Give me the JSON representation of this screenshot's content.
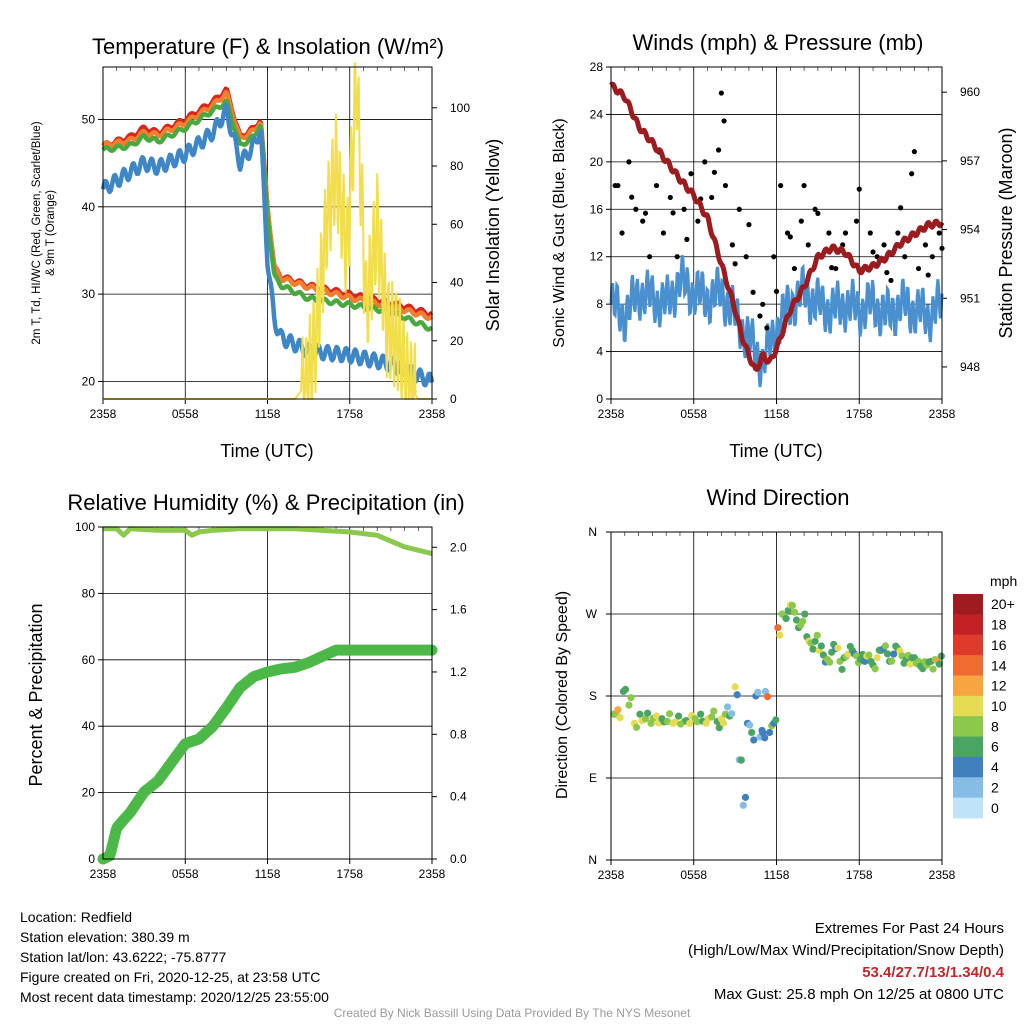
{
  "x_ticks": [
    "2358",
    "0558",
    "1158",
    "1758",
    "2358"
  ],
  "panels": {
    "temperature": {
      "title": "Temperature (F) & Insolation (W/m²)",
      "xlabel": "Time (UTC)",
      "ylabel_line1": "2m T, Td, HI/WC (Red, Green, Scarlet/Blue)",
      "ylabel_line2": "& 9m T (Orange)",
      "y2label": "Solar Insolation (Yellow)"
    },
    "winds": {
      "title": "Winds (mph) & Pressure (mb)",
      "xlabel": "Time (UTC)",
      "ylabel": "Sonic Wind & Gust (Blue, Black)",
      "y2label": "Station Pressure (Maroon)"
    },
    "humidity": {
      "title": "Relative Humidity (%) & Precipitation (in)",
      "ylabel": "Percent & Precipitation"
    },
    "direction": {
      "title": "Wind Direction",
      "ylabel": "Direction (Colored By Speed)",
      "colorbar_unit": "mph",
      "colorbar_labels": [
        "20+",
        "18",
        "16",
        "14",
        "12",
        "10",
        "8",
        "6",
        "4",
        "2",
        "0"
      ],
      "colorbar_colors": [
        "#9e1b1f",
        "#c42127",
        "#e03a2c",
        "#f06b2f",
        "#f7a541",
        "#e6dc54",
        "#8cc84b",
        "#4aa564",
        "#3f80bd",
        "#86bde6",
        "#bfe3f7"
      ]
    }
  },
  "chart_data": [
    {
      "type": "line",
      "title": "Temperature (F) & Insolation (W/m²)",
      "xlabel": "Time (UTC)",
      "x_tick_labels": [
        "2358",
        "0558",
        "1158",
        "1758",
        "2358"
      ],
      "x_hours": [
        0,
        2,
        3,
        4,
        6,
        8,
        9,
        10,
        11,
        11.5,
        12,
        12.5,
        13,
        15,
        18,
        21,
        24
      ],
      "ylim": [
        18,
        56
      ],
      "y_ticks": [
        20,
        30,
        40,
        50
      ],
      "y2lim": [
        0,
        114
      ],
      "y2_ticks": [
        0,
        20,
        40,
        60,
        80,
        100
      ],
      "series": [
        {
          "name": "2m T",
          "color": "#d7261e",
          "axis": "left",
          "values": [
            47,
            48,
            49,
            48.5,
            50,
            52,
            53.4,
            48,
            49,
            50,
            40,
            33,
            32,
            31,
            30,
            29,
            27.7
          ]
        },
        {
          "name": "9m T",
          "color": "#f08030",
          "axis": "left",
          "values": [
            47,
            47.6,
            48.5,
            48.2,
            49.6,
            51.6,
            53,
            47.8,
            48.7,
            49.8,
            40,
            33,
            31.8,
            30.8,
            29.6,
            28.6,
            27.3
          ]
        },
        {
          "name": "Td",
          "color": "#4aa83e",
          "axis": "left",
          "values": [
            46.5,
            47,
            48,
            47.5,
            49,
            51,
            52,
            47,
            48,
            49.5,
            39,
            32,
            31,
            29.5,
            28.8,
            28,
            26
          ]
        },
        {
          "name": "HI/WC",
          "color": "#3f86c6",
          "axis": "left",
          "values": [
            42,
            44,
            45,
            44.5,
            46,
            48.5,
            51,
            45,
            47,
            49,
            34,
            27,
            25,
            23.5,
            23,
            22,
            20
          ]
        },
        {
          "name": "Solar Insolation",
          "color": "#f2dd4a",
          "axis": "right",
          "x_hours": [
            0,
            14,
            14.8,
            15.5,
            16.3,
            17,
            17.8,
            18.5,
            19.2,
            20,
            20.7,
            21.5,
            22.2,
            23,
            24
          ],
          "values": [
            0,
            0,
            5,
            20,
            60,
            80,
            50,
            110,
            30,
            60,
            25,
            20,
            5,
            0,
            0
          ]
        }
      ]
    },
    {
      "type": "scatter",
      "title": "Winds (mph) & Pressure (mb)",
      "xlabel": "Time (UTC)",
      "x_tick_labels": [
        "2358",
        "0558",
        "1158",
        "1758",
        "2358"
      ],
      "ylim": [
        0,
        28
      ],
      "y_ticks": [
        0,
        4,
        8,
        12,
        16,
        20,
        24,
        28
      ],
      "y2lim": [
        946.6,
        961.1
      ],
      "y2_ticks": [
        948,
        951,
        954,
        957,
        960
      ],
      "series": [
        {
          "name": "Sonic Wind",
          "color": "#4a90cf",
          "x_hours": [
            0,
            1,
            2,
            3,
            4,
            5,
            6,
            7,
            8,
            9,
            10,
            10.5,
            11,
            12,
            13,
            14,
            15,
            16,
            17,
            18,
            19,
            20,
            21,
            22,
            23,
            24
          ],
          "values": [
            8,
            7,
            9,
            8.5,
            8,
            10,
            9,
            8.5,
            9,
            7,
            5,
            4,
            3,
            6,
            8,
            9,
            8,
            7.5,
            8,
            7.5,
            8,
            7,
            8,
            7.5,
            7,
            8
          ]
        },
        {
          "name": "Gust",
          "color": "#000000",
          "x_hours": [
            0.3,
            0.8,
            1.3,
            1.8,
            2.3,
            2.8,
            3.3,
            3.8,
            4.3,
            4.8,
            5.3,
            5.8,
            6.3,
            6.8,
            7.3,
            7.8,
            8.0,
            8.3,
            8.8,
            9.3,
            9.8,
            10.3,
            10.8,
            11.3,
            11.8,
            12.3,
            12.8,
            13.3,
            13.8,
            14.3,
            14.8,
            15.3,
            15.8,
            16.3,
            16.8,
            17.3,
            17.8,
            18.3,
            18.8,
            19.3,
            19.8,
            20.3,
            20.8,
            21.3,
            21.8,
            22.3,
            22.8,
            23.3,
            23.8
          ],
          "values": [
            18,
            14,
            20,
            16,
            15,
            12,
            18,
            14,
            17,
            12,
            16,
            19,
            15,
            20,
            17,
            21,
            25.8,
            18,
            13,
            16,
            12,
            9,
            7,
            6,
            12,
            18,
            14,
            11,
            15,
            13,
            16,
            12,
            14,
            11,
            13,
            12,
            15,
            11,
            14,
            12,
            13,
            10,
            14,
            12,
            19,
            11,
            13,
            12,
            14
          ]
        },
        {
          "name": "Station Pressure",
          "color": "#9b1b1e",
          "axis": "right",
          "x_hours": [
            0,
            1,
            2,
            3,
            4,
            5,
            6,
            7,
            8,
            9,
            9.5,
            10,
            10.5,
            11,
            11.5,
            12,
            13,
            14,
            15,
            16,
            17,
            18,
            19,
            20,
            21,
            22,
            23,
            24
          ],
          "values": [
            960.3,
            959.8,
            958.5,
            957.8,
            957,
            956.2,
            955.5,
            954.5,
            952.5,
            950.5,
            949.3,
            948.5,
            947.8,
            948.5,
            948.2,
            948.8,
            950.5,
            951.5,
            952.8,
            953.2,
            953,
            952.2,
            952.4,
            952.8,
            953.4,
            953.8,
            954.2,
            954.3
          ]
        }
      ]
    },
    {
      "type": "line",
      "title": "Relative Humidity (%) & Precipitation (in)",
      "x_tick_labels": [
        "2358",
        "0558",
        "1158",
        "1758",
        "2358"
      ],
      "ylim": [
        0,
        100
      ],
      "y_ticks": [
        0,
        20,
        40,
        60,
        80,
        100
      ],
      "y2lim": [
        0,
        2.13
      ],
      "y2_ticks": [
        0.0,
        0.4,
        0.8,
        1.2,
        1.6,
        2.0
      ],
      "series": [
        {
          "name": "Relative Humidity",
          "color": "#8cc84b",
          "axis": "left",
          "x_hours": [
            0,
            1,
            1.5,
            2,
            4,
            6,
            6.5,
            7,
            8,
            10,
            12,
            14,
            16,
            18,
            20,
            22,
            24
          ],
          "values": [
            99.5,
            99.5,
            97.5,
            99.5,
            99,
            99,
            97.5,
            98.5,
            99,
            99.5,
            99.5,
            99.5,
            99,
            98.5,
            97.5,
            94,
            92
          ]
        },
        {
          "name": "Precipitation",
          "color": "#4cb848",
          "axis": "right",
          "x_hours": [
            0,
            0.5,
            1,
            2,
            3,
            4,
            5,
            6,
            7,
            8,
            9,
            10,
            11,
            12,
            13,
            14,
            15,
            16,
            17,
            18,
            20,
            22,
            24
          ],
          "values": [
            0.0,
            0.02,
            0.2,
            0.3,
            0.43,
            0.5,
            0.62,
            0.74,
            0.77,
            0.85,
            0.97,
            1.1,
            1.17,
            1.2,
            1.22,
            1.23,
            1.26,
            1.3,
            1.34,
            1.34,
            1.34,
            1.34,
            1.34
          ]
        }
      ]
    },
    {
      "type": "scatter",
      "title": "Wind Direction",
      "x_tick_labels": [
        "2358",
        "0558",
        "1158",
        "1758",
        "2358"
      ],
      "y_tick_labels": [
        "N",
        "E",
        "S",
        "W",
        "N"
      ],
      "ylim": [
        0,
        360
      ],
      "x_hours": [
        0.2,
        0.5,
        0.9,
        1.3,
        1.7,
        2.1,
        2.5,
        2.9,
        3.3,
        3.7,
        4.1,
        4.5,
        4.9,
        5.3,
        5.7,
        6.1,
        6.5,
        6.9,
        7.3,
        7.7,
        8.0,
        8.3,
        8.6,
        9.0,
        9.3,
        9.6,
        9.9,
        10.2,
        10.5,
        10.8,
        11.0,
        11.2,
        11.5,
        11.8,
        12.1,
        12.4,
        12.7,
        13.0,
        13.3,
        13.6,
        13.9,
        14.2,
        14.5,
        14.8,
        15.1,
        15.4,
        15.7,
        16.0,
        16.3,
        16.6,
        16.9,
        17.2,
        17.5,
        17.8,
        18.1,
        18.4,
        18.7,
        19.0,
        19.3,
        19.6,
        19.9,
        20.2,
        20.5,
        20.8,
        21.1,
        21.4,
        21.7,
        22.0,
        22.3,
        22.6,
        22.9,
        23.2,
        23.5,
        23.8
      ],
      "values": [
        160,
        165,
        185,
        170,
        150,
        160,
        155,
        150,
        158,
        155,
        152,
        150,
        158,
        152,
        150,
        155,
        160,
        150,
        157,
        152,
        155,
        160,
        158,
        190,
        110,
        60,
        150,
        140,
        180,
        135,
        140,
        185,
        140,
        150,
        255,
        270,
        265,
        280,
        272,
        255,
        262,
        245,
        238,
        240,
        230,
        225,
        220,
        228,
        232,
        218,
        222,
        226,
        230,
        224,
        220,
        218,
        225,
        214,
        222,
        230,
        235,
        218,
        226,
        232,
        224,
        220,
        215,
        222,
        218,
        210,
        214,
        218,
        220,
        215
      ],
      "speeds": [
        8,
        12,
        6,
        8,
        10,
        6,
        8,
        8,
        10,
        6,
        8,
        10,
        6,
        8,
        10,
        8,
        6,
        10,
        8,
        6,
        10,
        8,
        6,
        10,
        2,
        2,
        4,
        6,
        4,
        2,
        4,
        2,
        4,
        4,
        14,
        8,
        6,
        10,
        8,
        6,
        8,
        6,
        8,
        6,
        10,
        6,
        8,
        6,
        4,
        8,
        6,
        10,
        6,
        8,
        6,
        4,
        8,
        6,
        10,
        6,
        8,
        6,
        4,
        6,
        8,
        6,
        10,
        6,
        8,
        6,
        8,
        6,
        8,
        6
      ]
    }
  ],
  "footer": {
    "location": "Location: Redfield",
    "elevation": "Station elevation: 380.39 m",
    "latlon": "Station lat/lon: 43.6222; -75.8777",
    "created": "Figure created on Fri, 2020-12-25, at 23:58 UTC",
    "recent": "Most recent data timestamp: 2020/12/25 23:55:00",
    "extremes_title": "Extremes For Past 24 Hours",
    "extremes_desc": "(High/Low/Max Wind/Precipitation/Snow Depth)",
    "extremes_values": "53.4/27.7/13/1.34/0.4",
    "max_gust": "Max Gust: 25.8 mph On 12/25 at 0800 UTC",
    "credit": "Created By Nick Bassill Using Data Provided By The NYS Mesonet"
  }
}
